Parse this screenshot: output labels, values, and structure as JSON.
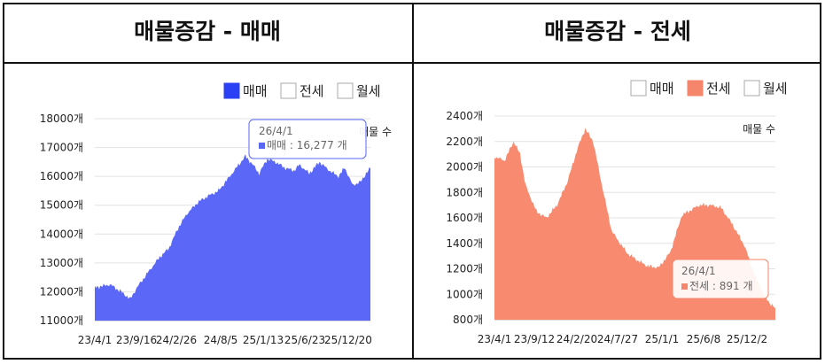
{
  "panels": [
    {
      "title": "매물증감 - 매매",
      "legend": [
        {
          "label": "매매",
          "checked": true,
          "color": "#2b3ff5"
        },
        {
          "label": "전세",
          "checked": false,
          "color": "#ffffff"
        },
        {
          "label": "월세",
          "checked": false,
          "color": "#ffffff"
        }
      ],
      "unit_label": "매물 수",
      "tooltip": {
        "date": "26/4/1",
        "series": "매매",
        "value_text": "16,277",
        "unit": "개"
      }
    },
    {
      "title": "매물증감 - 전세",
      "legend": [
        {
          "label": "매매",
          "checked": false,
          "color": "#ffffff"
        },
        {
          "label": "전세",
          "checked": true,
          "color": "#f5866b"
        },
        {
          "label": "월세",
          "checked": false,
          "color": "#ffffff"
        }
      ],
      "unit_label": "매물 수",
      "tooltip": {
        "date": "26/4/1",
        "series": "전세",
        "value_text": "891",
        "unit": "개"
      }
    }
  ],
  "chart_data": [
    {
      "type": "area",
      "title": "매물증감 - 매매",
      "series": [
        {
          "name": "매매",
          "color": "#5a67f7"
        }
      ],
      "ylim": [
        11000,
        18000
      ],
      "y_ticks": [
        "11000개",
        "12000개",
        "13000개",
        "14000개",
        "15000개",
        "16000개",
        "17000개",
        "18000개"
      ],
      "x_ticks": [
        "23/4/1",
        "23/9/16",
        "24/2/26",
        "24/8/5",
        "25/1/13",
        "25/6/23",
        "25/12/20"
      ],
      "x_start": "23/4/1",
      "x_end": "26/4/1",
      "points": [
        [
          "23/4/1",
          12150
        ],
        [
          "23/6/1",
          12250
        ],
        [
          "23/7/15",
          12000
        ],
        [
          "23/8/20",
          11750
        ],
        [
          "23/9/16",
          12150
        ],
        [
          "23/11/1",
          12700
        ],
        [
          "23/12/15",
          13200
        ],
        [
          "24/1/20",
          13500
        ],
        [
          "24/2/26",
          14200
        ],
        [
          "24/4/1",
          14700
        ],
        [
          "24/5/15",
          15100
        ],
        [
          "24/6/20",
          15300
        ],
        [
          "24/8/5",
          15500
        ],
        [
          "24/9/10",
          15900
        ],
        [
          "24/10/15",
          16300
        ],
        [
          "24/11/20",
          16700
        ],
        [
          "24/12/20",
          16400
        ],
        [
          "25/1/13",
          16100
        ],
        [
          "25/2/15",
          16600
        ],
        [
          "25/3/20",
          16500
        ],
        [
          "25/4/25",
          16300
        ],
        [
          "25/6/1",
          16200
        ],
        [
          "25/6/23",
          16400
        ],
        [
          "25/8/1",
          16100
        ],
        [
          "25/9/10",
          16500
        ],
        [
          "25/10/20",
          16200
        ],
        [
          "25/11/25",
          16000
        ],
        [
          "25/12/20",
          16300
        ],
        [
          "26/1/20",
          15700
        ],
        [
          "26/2/20",
          15800
        ],
        [
          "26/3/15",
          16100
        ],
        [
          "26/4/1",
          16277
        ]
      ]
    },
    {
      "type": "area",
      "title": "매물증감 - 전세",
      "series": [
        {
          "name": "전세",
          "color": "#f88a70"
        }
      ],
      "ylim": [
        800,
        2400
      ],
      "y_ticks": [
        "800개",
        "1000개",
        "1200개",
        "1400개",
        "1600개",
        "1800개",
        "2000개",
        "2200개",
        "2400개"
      ],
      "x_ticks": [
        "23/4/1",
        "23/9/12",
        "24/2/20",
        "24/7/27",
        "25/1/1",
        "25/6/8",
        "25/12/2"
      ],
      "x_start": "23/4/1",
      "x_end": "26/4/1",
      "points": [
        [
          "23/4/1",
          2080
        ],
        [
          "23/5/10",
          2050
        ],
        [
          "23/6/15",
          2200
        ],
        [
          "23/7/10",
          2100
        ],
        [
          "23/8/1",
          1850
        ],
        [
          "23/9/12",
          1650
        ],
        [
          "23/10/20",
          1600
        ],
        [
          "23/12/1",
          1700
        ],
        [
          "24/1/10",
          1880
        ],
        [
          "24/2/20",
          2150
        ],
        [
          "24/3/20",
          2300
        ],
        [
          "24/4/20",
          2200
        ],
        [
          "24/5/25",
          1850
        ],
        [
          "24/7/1",
          1500
        ],
        [
          "24/7/27",
          1420
        ],
        [
          "24/9/1",
          1320
        ],
        [
          "24/10/15",
          1260
        ],
        [
          "24/11/20",
          1220
        ],
        [
          "25/1/1",
          1210
        ],
        [
          "25/2/15",
          1330
        ],
        [
          "25/4/1",
          1620
        ],
        [
          "25/6/8",
          1700
        ],
        [
          "25/7/20",
          1700
        ],
        [
          "25/9/1",
          1680
        ],
        [
          "25/10/15",
          1550
        ],
        [
          "25/12/2",
          1380
        ],
        [
          "26/1/10",
          1150
        ],
        [
          "26/2/20",
          980
        ],
        [
          "26/3/15",
          920
        ],
        [
          "26/4/1",
          891
        ]
      ]
    }
  ]
}
